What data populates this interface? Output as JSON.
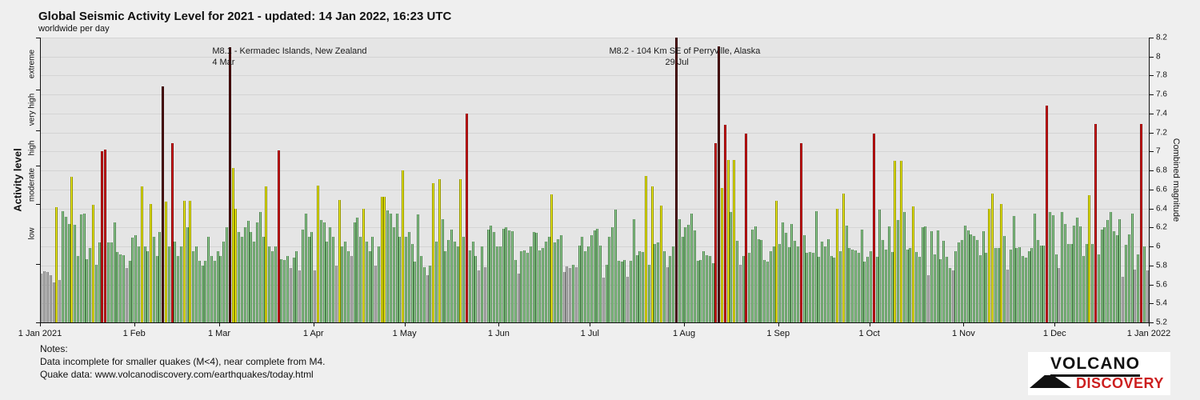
{
  "header": {
    "title": "Global Seismic Activity Level for 2021 - updated: 14 Jan 2022, 16:23 UTC",
    "subtitle": "worldwide per day"
  },
  "axes": {
    "left_title": "Activity level",
    "left_bands": [
      "extreme",
      "very high",
      "high",
      "moderate",
      "low"
    ],
    "right_title": "Combined magnitude",
    "right_min": 5.2,
    "right_max": 8.2,
    "right_step": 0.2,
    "x_labels": [
      "1 Jan 2021",
      "1 Feb",
      "1 Mar",
      "1 Apr",
      "1 May",
      "1 Jun",
      "1 Jul",
      "1 Aug",
      "1 Sep",
      "1 Oct",
      "1 Nov",
      "1 Dec",
      "1 Jan 2022"
    ]
  },
  "annotations": [
    {
      "line1": "M8.1 - Kermadec Islands, New Zealand",
      "line2": "4 Mar",
      "day_of_year": 63
    },
    {
      "line1": "M8.2 - 104 Km SE of Perryville, Alaska",
      "line2": "29 Jul",
      "day_of_year": 210
    }
  ],
  "notes": {
    "heading": "Notes:",
    "line1": "Data incomplete for smaller quakes (M<4), near complete from M4.",
    "line2": "Quake data: www.volcanodiscovery.com/earthquakes/today.html"
  },
  "logo": {
    "line1": "VOLCANO",
    "line2": "DISCOVERY"
  },
  "colors": {
    "gray_fill": "#bcbcbc",
    "gray_edge": "#7d7d7d",
    "green_fill": "#97d897",
    "green_edge": "#4e7e4e",
    "yellow_fill": "#f8f800",
    "yellow_edge": "#8f8f00",
    "red_fill": "#e01414",
    "red_edge": "#7e0a0a",
    "darkred_fill": "#5c0d0d",
    "darkred_edge": "#2e0404",
    "plot_bg": "#e5e5e5",
    "grid": "#d4d4d4",
    "page_bg": "#efefef"
  },
  "chart_data": {
    "type": "bar",
    "title": "Global Seismic Activity Level for 2021 - updated: 14 Jan 2022, 16:23 UTC",
    "subtitle": "worldwide per day",
    "x_start": "1 Jan 2021",
    "x_end": "1 Jan 2022",
    "ylabel_left": "Activity level",
    "ylabel_right": "Combined magnitude",
    "ylim": [
      5.2,
      8.2
    ],
    "grid": true,
    "level_colors": {
      "x": "low (gray)",
      "g": "moderate (green)",
      "y": "high (yellow)",
      "r": "very high (red)",
      "d": "extreme (dark red)"
    },
    "month_day_offsets": [
      0,
      31,
      59,
      90,
      120,
      151,
      181,
      212,
      243,
      273,
      304,
      334,
      365
    ],
    "notable_events": [
      {
        "day_of_year": 63,
        "magnitude": 8.1,
        "label": "M8.1 - Kermadec Islands, New Zealand, 4 Mar"
      },
      {
        "day_of_year": 210,
        "magnitude": 8.2,
        "label": "M8.2 - 104 Km SE of Perryville, Alaska, 29 Jul"
      }
    ],
    "days": [
      [
        5.71,
        "x"
      ],
      [
        5.74,
        "x"
      ],
      [
        5.73,
        "x"
      ],
      [
        5.7,
        "x"
      ],
      [
        5.62,
        "x"
      ],
      [
        6.41,
        "y"
      ],
      [
        5.65,
        "x"
      ],
      [
        6.37,
        "g"
      ],
      [
        6.31,
        "g"
      ],
      [
        6.24,
        "g"
      ],
      [
        6.73,
        "y"
      ],
      [
        6.23,
        "g"
      ],
      [
        5.9,
        "g"
      ],
      [
        6.34,
        "g"
      ],
      [
        6.35,
        "g"
      ],
      [
        5.87,
        "g"
      ],
      [
        5.98,
        "g"
      ],
      [
        6.44,
        "y"
      ],
      [
        5.81,
        "g"
      ],
      [
        6.04,
        "g"
      ],
      [
        7.0,
        "r"
      ],
      [
        7.02,
        "r"
      ],
      [
        6.04,
        "g"
      ],
      [
        6.04,
        "g"
      ],
      [
        6.25,
        "g"
      ],
      [
        5.94,
        "g"
      ],
      [
        5.92,
        "g"
      ],
      [
        5.91,
        "g"
      ],
      [
        5.77,
        "x"
      ],
      [
        5.85,
        "g"
      ],
      [
        6.09,
        "g"
      ],
      [
        6.12,
        "g"
      ],
      [
        6.0,
        "g"
      ],
      [
        6.63,
        "y"
      ],
      [
        6.0,
        "g"
      ],
      [
        5.95,
        "g"
      ],
      [
        6.45,
        "y"
      ],
      [
        6.1,
        "g"
      ],
      [
        5.9,
        "g"
      ],
      [
        6.15,
        "g"
      ],
      [
        7.69,
        "d"
      ],
      [
        6.47,
        "y"
      ],
      [
        6.0,
        "g"
      ],
      [
        7.09,
        "r"
      ],
      [
        6.05,
        "g"
      ],
      [
        5.9,
        "g"
      ],
      [
        6.0,
        "g"
      ],
      [
        6.48,
        "y"
      ],
      [
        6.2,
        "g"
      ],
      [
        6.48,
        "y"
      ],
      [
        5.95,
        "g"
      ],
      [
        6.0,
        "g"
      ],
      [
        5.85,
        "g"
      ],
      [
        5.8,
        "g"
      ],
      [
        5.85,
        "g"
      ],
      [
        6.1,
        "g"
      ],
      [
        5.9,
        "g"
      ],
      [
        5.85,
        "g"
      ],
      [
        5.95,
        "g"
      ],
      [
        5.9,
        "g"
      ],
      [
        6.05,
        "g"
      ],
      [
        6.2,
        "g"
      ],
      [
        8.1,
        "d"
      ],
      [
        6.83,
        "y"
      ],
      [
        6.4,
        "y"
      ],
      [
        6.15,
        "g"
      ],
      [
        6.1,
        "g"
      ],
      [
        6.2,
        "g"
      ],
      [
        6.27,
        "g"
      ],
      [
        6.15,
        "g"
      ],
      [
        6.05,
        "g"
      ],
      [
        6.25,
        "g"
      ],
      [
        6.36,
        "g"
      ],
      [
        6.1,
        "g"
      ],
      [
        6.63,
        "y"
      ],
      [
        6.0,
        "g"
      ],
      [
        5.95,
        "g"
      ],
      [
        6.0,
        "g"
      ],
      [
        7.01,
        "r"
      ],
      [
        5.87,
        "g"
      ],
      [
        5.86,
        "g"
      ],
      [
        5.9,
        "g"
      ],
      [
        5.77,
        "x"
      ],
      [
        5.88,
        "g"
      ],
      [
        5.95,
        "g"
      ],
      [
        5.75,
        "x"
      ],
      [
        6.18,
        "g"
      ],
      [
        6.35,
        "g"
      ],
      [
        6.1,
        "g"
      ],
      [
        6.15,
        "g"
      ],
      [
        5.75,
        "x"
      ],
      [
        6.64,
        "y"
      ],
      [
        6.28,
        "g"
      ],
      [
        6.25,
        "g"
      ],
      [
        6.05,
        "g"
      ],
      [
        6.2,
        "g"
      ],
      [
        6.1,
        "g"
      ],
      [
        5.8,
        "x"
      ],
      [
        6.49,
        "y"
      ],
      [
        6.0,
        "g"
      ],
      [
        6.05,
        "g"
      ],
      [
        5.95,
        "g"
      ],
      [
        5.9,
        "x"
      ],
      [
        6.25,
        "g"
      ],
      [
        6.3,
        "g"
      ],
      [
        6.1,
        "g"
      ],
      [
        6.4,
        "y"
      ],
      [
        6.05,
        "g"
      ],
      [
        5.95,
        "g"
      ],
      [
        6.1,
        "g"
      ],
      [
        5.8,
        "x"
      ],
      [
        6.0,
        "g"
      ],
      [
        6.52,
        "y"
      ],
      [
        6.52,
        "y"
      ],
      [
        6.38,
        "g"
      ],
      [
        6.35,
        "g"
      ],
      [
        6.2,
        "g"
      ],
      [
        6.35,
        "g"
      ],
      [
        6.1,
        "g"
      ],
      [
        6.8,
        "y"
      ],
      [
        6.1,
        "g"
      ],
      [
        6.15,
        "g"
      ],
      [
        6.03,
        "g"
      ],
      [
        5.84,
        "g"
      ],
      [
        6.34,
        "g"
      ],
      [
        5.9,
        "g"
      ],
      [
        5.78,
        "g"
      ],
      [
        5.7,
        "x"
      ],
      [
        5.8,
        "g"
      ],
      [
        6.67,
        "y"
      ],
      [
        6.05,
        "g"
      ],
      [
        6.71,
        "y"
      ],
      [
        6.29,
        "g"
      ],
      [
        5.95,
        "g"
      ],
      [
        6.07,
        "g"
      ],
      [
        6.18,
        "g"
      ],
      [
        6.05,
        "g"
      ],
      [
        6.0,
        "g"
      ],
      [
        6.71,
        "y"
      ],
      [
        6.1,
        "g"
      ],
      [
        7.4,
        "r"
      ],
      [
        5.96,
        "g"
      ],
      [
        6.05,
        "g"
      ],
      [
        5.9,
        "g"
      ],
      [
        5.75,
        "x"
      ],
      [
        6.0,
        "g"
      ],
      [
        5.78,
        "x"
      ],
      [
        6.18,
        "g"
      ],
      [
        6.22,
        "g"
      ],
      [
        6.15,
        "g"
      ],
      [
        6.0,
        "g"
      ],
      [
        6.0,
        "g"
      ],
      [
        6.19,
        "g"
      ],
      [
        6.2,
        "g"
      ],
      [
        6.17,
        "g"
      ],
      [
        6.16,
        "g"
      ],
      [
        5.86,
        "g"
      ],
      [
        5.71,
        "x"
      ],
      [
        5.95,
        "g"
      ],
      [
        5.96,
        "g"
      ],
      [
        5.93,
        "g"
      ],
      [
        6.0,
        "g"
      ],
      [
        6.15,
        "g"
      ],
      [
        6.14,
        "g"
      ],
      [
        5.96,
        "g"
      ],
      [
        5.98,
        "g"
      ],
      [
        6.05,
        "g"
      ],
      [
        6.1,
        "g"
      ],
      [
        6.55,
        "y"
      ],
      [
        6.04,
        "g"
      ],
      [
        6.08,
        "g"
      ],
      [
        6.12,
        "g"
      ],
      [
        5.73,
        "x"
      ],
      [
        5.79,
        "x"
      ],
      [
        5.77,
        "x"
      ],
      [
        5.81,
        "g"
      ],
      [
        5.78,
        "x"
      ],
      [
        6.01,
        "g"
      ],
      [
        6.1,
        "g"
      ],
      [
        5.95,
        "g"
      ],
      [
        6.0,
        "g"
      ],
      [
        6.12,
        "g"
      ],
      [
        6.17,
        "g"
      ],
      [
        6.19,
        "g"
      ],
      [
        6.01,
        "g"
      ],
      [
        5.67,
        "x"
      ],
      [
        5.81,
        "g"
      ],
      [
        6.1,
        "g"
      ],
      [
        6.2,
        "g"
      ],
      [
        6.39,
        "g"
      ],
      [
        5.85,
        "g"
      ],
      [
        5.84,
        "g"
      ],
      [
        5.86,
        "g"
      ],
      [
        5.68,
        "x"
      ],
      [
        5.85,
        "g"
      ],
      [
        6.29,
        "g"
      ],
      [
        5.91,
        "g"
      ],
      [
        5.95,
        "g"
      ],
      [
        5.94,
        "g"
      ],
      [
        6.74,
        "y"
      ],
      [
        5.81,
        "g"
      ],
      [
        6.63,
        "y"
      ],
      [
        6.03,
        "g"
      ],
      [
        6.04,
        "g"
      ],
      [
        6.43,
        "y"
      ],
      [
        5.95,
        "g"
      ],
      [
        5.78,
        "x"
      ],
      [
        5.9,
        "g"
      ],
      [
        6.0,
        "g"
      ],
      [
        8.2,
        "d"
      ],
      [
        6.29,
        "g"
      ],
      [
        6.1,
        "g"
      ],
      [
        6.2,
        "g"
      ],
      [
        6.23,
        "g"
      ],
      [
        6.35,
        "g"
      ],
      [
        6.17,
        "g"
      ],
      [
        5.85,
        "g"
      ],
      [
        5.86,
        "g"
      ],
      [
        5.95,
        "g"
      ],
      [
        5.91,
        "g"
      ],
      [
        5.9,
        "g"
      ],
      [
        5.82,
        "g"
      ],
      [
        7.09,
        "r"
      ],
      [
        8.11,
        "d"
      ],
      [
        6.62,
        "y"
      ],
      [
        7.28,
        "r"
      ],
      [
        6.91,
        "y"
      ],
      [
        6.36,
        "g"
      ],
      [
        6.91,
        "y"
      ],
      [
        6.06,
        "g"
      ],
      [
        5.81,
        "x"
      ],
      [
        5.9,
        "g"
      ],
      [
        7.19,
        "r"
      ],
      [
        5.93,
        "g"
      ],
      [
        6.18,
        "g"
      ],
      [
        6.21,
        "g"
      ],
      [
        6.08,
        "g"
      ],
      [
        6.07,
        "g"
      ],
      [
        5.86,
        "g"
      ],
      [
        5.84,
        "g"
      ],
      [
        5.95,
        "g"
      ],
      [
        6.0,
        "g"
      ],
      [
        6.48,
        "y"
      ],
      [
        6.03,
        "g"
      ],
      [
        6.25,
        "g"
      ],
      [
        6.14,
        "g"
      ],
      [
        5.99,
        "g"
      ],
      [
        6.24,
        "g"
      ],
      [
        6.06,
        "g"
      ],
      [
        6.0,
        "g"
      ],
      [
        7.09,
        "r"
      ],
      [
        6.12,
        "g"
      ],
      [
        5.93,
        "g"
      ],
      [
        5.94,
        "g"
      ],
      [
        5.93,
        "g"
      ],
      [
        6.37,
        "g"
      ],
      [
        5.89,
        "g"
      ],
      [
        6.05,
        "g"
      ],
      [
        6.0,
        "g"
      ],
      [
        6.08,
        "g"
      ],
      [
        5.9,
        "g"
      ],
      [
        5.88,
        "g"
      ],
      [
        6.4,
        "y"
      ],
      [
        5.95,
        "g"
      ],
      [
        6.56,
        "y"
      ],
      [
        6.22,
        "g"
      ],
      [
        5.98,
        "g"
      ],
      [
        5.97,
        "g"
      ],
      [
        5.96,
        "g"
      ],
      [
        5.93,
        "g"
      ],
      [
        6.18,
        "g"
      ],
      [
        5.84,
        "g"
      ],
      [
        5.89,
        "g"
      ],
      [
        5.95,
        "g"
      ],
      [
        7.19,
        "r"
      ],
      [
        5.89,
        "g"
      ],
      [
        6.39,
        "g"
      ],
      [
        6.07,
        "g"
      ],
      [
        5.97,
        "g"
      ],
      [
        6.21,
        "g"
      ],
      [
        5.94,
        "g"
      ],
      [
        6.9,
        "y"
      ],
      [
        6.28,
        "g"
      ],
      [
        6.9,
        "y"
      ],
      [
        6.36,
        "g"
      ],
      [
        5.97,
        "g"
      ],
      [
        5.98,
        "g"
      ],
      [
        6.42,
        "y"
      ],
      [
        5.94,
        "g"
      ],
      [
        5.89,
        "g"
      ],
      [
        6.2,
        "g"
      ],
      [
        6.21,
        "g"
      ],
      [
        5.7,
        "x"
      ],
      [
        6.16,
        "g"
      ],
      [
        5.92,
        "g"
      ],
      [
        6.17,
        "g"
      ],
      [
        5.87,
        "g"
      ],
      [
        6.06,
        "g"
      ],
      [
        5.89,
        "g"
      ],
      [
        5.77,
        "g"
      ],
      [
        5.75,
        "x"
      ],
      [
        5.95,
        "g"
      ],
      [
        6.04,
        "g"
      ],
      [
        6.07,
        "g"
      ],
      [
        6.22,
        "g"
      ],
      [
        6.17,
        "g"
      ],
      [
        6.13,
        "g"
      ],
      [
        6.11,
        "g"
      ],
      [
        6.07,
        "g"
      ],
      [
        5.91,
        "g"
      ],
      [
        6.16,
        "g"
      ],
      [
        5.93,
        "g"
      ],
      [
        6.4,
        "y"
      ],
      [
        6.56,
        "y"
      ],
      [
        5.98,
        "g"
      ],
      [
        5.98,
        "g"
      ],
      [
        6.45,
        "y"
      ],
      [
        6.11,
        "g"
      ],
      [
        5.76,
        "x"
      ],
      [
        5.97,
        "g"
      ],
      [
        6.32,
        "g"
      ],
      [
        5.98,
        "g"
      ],
      [
        5.99,
        "g"
      ],
      [
        5.9,
        "g"
      ],
      [
        5.88,
        "g"
      ],
      [
        5.95,
        "g"
      ],
      [
        5.98,
        "g"
      ],
      [
        6.35,
        "g"
      ],
      [
        6.07,
        "g"
      ],
      [
        6.01,
        "g"
      ],
      [
        6.01,
        "g"
      ],
      [
        7.48,
        "r"
      ],
      [
        6.36,
        "g"
      ],
      [
        6.33,
        "g"
      ],
      [
        5.92,
        "g"
      ],
      [
        5.77,
        "x"
      ],
      [
        6.36,
        "g"
      ],
      [
        6.24,
        "g"
      ],
      [
        6.03,
        "g"
      ],
      [
        6.03,
        "g"
      ],
      [
        6.22,
        "g"
      ],
      [
        6.3,
        "g"
      ],
      [
        6.21,
        "g"
      ],
      [
        5.9,
        "g"
      ],
      [
        6.03,
        "g"
      ],
      [
        6.54,
        "y"
      ],
      [
        6.03,
        "g"
      ],
      [
        7.29,
        "r"
      ],
      [
        5.92,
        "g"
      ],
      [
        6.18,
        "g"
      ],
      [
        6.2,
        "g"
      ],
      [
        6.28,
        "g"
      ],
      [
        6.36,
        "g"
      ],
      [
        6.16,
        "g"
      ],
      [
        6.12,
        "g"
      ],
      [
        6.29,
        "g"
      ],
      [
        5.68,
        "x"
      ],
      [
        6.02,
        "g"
      ],
      [
        6.13,
        "g"
      ],
      [
        6.35,
        "g"
      ],
      [
        5.76,
        "x"
      ],
      [
        5.92,
        "g"
      ],
      [
        7.29,
        "r"
      ],
      [
        6.0,
        "g"
      ],
      [
        5.75,
        "x"
      ]
    ]
  }
}
